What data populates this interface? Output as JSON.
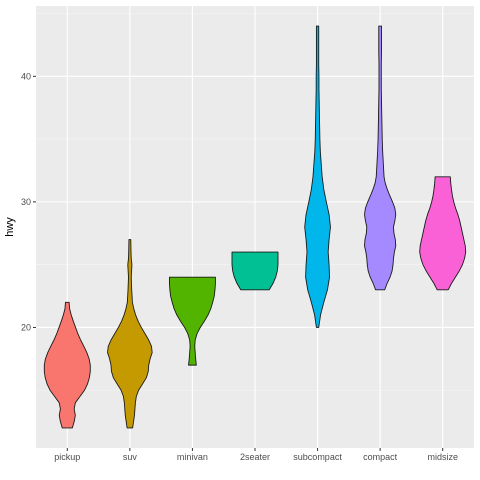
{
  "chart_data": {
    "type": "violin",
    "title": "",
    "xlabel": "",
    "ylabel": "hwy",
    "ylim": [
      10.4,
      45.6
    ],
    "y_ticks": [
      20,
      30,
      40
    ],
    "grid": true,
    "legend": "none",
    "categories": [
      "pickup",
      "suv",
      "minivan",
      "2seater",
      "subcompact",
      "compact",
      "midsize"
    ],
    "colors": [
      "#F8766D",
      "#C49A00",
      "#53B400",
      "#00C094",
      "#00B6EB",
      "#A58AFF",
      "#FB61D7"
    ],
    "violins": [
      {
        "category": "pickup",
        "min": 12,
        "max": 22,
        "profile": [
          [
            12,
            0.22
          ],
          [
            12.5,
            0.3
          ],
          [
            13,
            0.35
          ],
          [
            13.5,
            0.3
          ],
          [
            14,
            0.35
          ],
          [
            14.5,
            0.55
          ],
          [
            15,
            0.75
          ],
          [
            15.5,
            0.88
          ],
          [
            16,
            0.96
          ],
          [
            16.5,
            1.0
          ],
          [
            17,
            1.0
          ],
          [
            17.5,
            0.95
          ],
          [
            18,
            0.85
          ],
          [
            18.5,
            0.72
          ],
          [
            19,
            0.58
          ],
          [
            19.5,
            0.46
          ],
          [
            20,
            0.36
          ],
          [
            20.5,
            0.26
          ],
          [
            21,
            0.17
          ],
          [
            21.5,
            0.1
          ],
          [
            22,
            0.08
          ]
        ]
      },
      {
        "category": "suv",
        "min": 12,
        "max": 27,
        "profile": [
          [
            12,
            0.12
          ],
          [
            12.5,
            0.16
          ],
          [
            13,
            0.2
          ],
          [
            13.5,
            0.22
          ],
          [
            14,
            0.24
          ],
          [
            14.5,
            0.28
          ],
          [
            15,
            0.38
          ],
          [
            15.5,
            0.55
          ],
          [
            16,
            0.72
          ],
          [
            16.5,
            0.8
          ],
          [
            17,
            0.82
          ],
          [
            17.5,
            0.88
          ],
          [
            18,
            0.97
          ],
          [
            18.5,
            0.94
          ],
          [
            19,
            0.82
          ],
          [
            19.5,
            0.66
          ],
          [
            20,
            0.5
          ],
          [
            20.5,
            0.36
          ],
          [
            21,
            0.25
          ],
          [
            21.5,
            0.17
          ],
          [
            22,
            0.11
          ],
          [
            23,
            0.08
          ],
          [
            24,
            0.06
          ],
          [
            25,
            0.09
          ],
          [
            25.5,
            0.06
          ],
          [
            26,
            0.05
          ],
          [
            27,
            0.04
          ]
        ]
      },
      {
        "category": "minivan",
        "min": 17,
        "max": 24,
        "profile": [
          [
            17,
            0.17
          ],
          [
            17.5,
            0.14
          ],
          [
            18,
            0.12
          ],
          [
            18.5,
            0.1
          ],
          [
            19,
            0.12
          ],
          [
            19.5,
            0.2
          ],
          [
            20,
            0.34
          ],
          [
            20.5,
            0.52
          ],
          [
            21,
            0.68
          ],
          [
            21.5,
            0.8
          ],
          [
            22,
            0.88
          ],
          [
            22.5,
            0.95
          ],
          [
            23,
            0.98
          ],
          [
            23.5,
            1.0
          ],
          [
            24,
            1.0
          ]
        ]
      },
      {
        "category": "2seater",
        "min": 23,
        "max": 26,
        "profile": [
          [
            23,
            0.62
          ],
          [
            23.5,
            0.78
          ],
          [
            24,
            0.9
          ],
          [
            24.5,
            0.97
          ],
          [
            25,
            1.0
          ],
          [
            25.5,
            1.0
          ],
          [
            26,
            1.0
          ]
        ]
      },
      {
        "category": "subcompact",
        "min": 20,
        "max": 44,
        "profile": [
          [
            20,
            0.05
          ],
          [
            21,
            0.13
          ],
          [
            22,
            0.27
          ],
          [
            23,
            0.43
          ],
          [
            24,
            0.52
          ],
          [
            25,
            0.5
          ],
          [
            26,
            0.46
          ],
          [
            27,
            0.5
          ],
          [
            28,
            0.56
          ],
          [
            29,
            0.5
          ],
          [
            30,
            0.38
          ],
          [
            31,
            0.27
          ],
          [
            32,
            0.2
          ],
          [
            33,
            0.16
          ],
          [
            34,
            0.12
          ],
          [
            35,
            0.1
          ],
          [
            36,
            0.09
          ],
          [
            37,
            0.08
          ],
          [
            38,
            0.07
          ],
          [
            39,
            0.06
          ],
          [
            40,
            0.06
          ],
          [
            41,
            0.05
          ],
          [
            42,
            0.05
          ],
          [
            43,
            0.05
          ],
          [
            44,
            0.05
          ]
        ]
      },
      {
        "category": "compact",
        "min": 23,
        "max": 44,
        "profile": [
          [
            23,
            0.2
          ],
          [
            23.5,
            0.3
          ],
          [
            24,
            0.43
          ],
          [
            24.5,
            0.52
          ],
          [
            25,
            0.56
          ],
          [
            25.5,
            0.58
          ],
          [
            26,
            0.62
          ],
          [
            26.5,
            0.68
          ],
          [
            27,
            0.66
          ],
          [
            27.5,
            0.6
          ],
          [
            28,
            0.58
          ],
          [
            28.5,
            0.64
          ],
          [
            29,
            0.68
          ],
          [
            29.5,
            0.64
          ],
          [
            30,
            0.54
          ],
          [
            30.5,
            0.42
          ],
          [
            31,
            0.31
          ],
          [
            31.5,
            0.22
          ],
          [
            32,
            0.17
          ],
          [
            33,
            0.14
          ],
          [
            34,
            0.11
          ],
          [
            35,
            0.09
          ],
          [
            36,
            0.08
          ],
          [
            37,
            0.07
          ],
          [
            38,
            0.06
          ],
          [
            39,
            0.05
          ],
          [
            40,
            0.05
          ],
          [
            41,
            0.05
          ],
          [
            42,
            0.06
          ],
          [
            43,
            0.06
          ],
          [
            44,
            0.06
          ]
        ]
      },
      {
        "category": "midsize",
        "min": 23,
        "max": 32,
        "profile": [
          [
            23,
            0.24
          ],
          [
            23.5,
            0.38
          ],
          [
            24,
            0.55
          ],
          [
            24.5,
            0.72
          ],
          [
            25,
            0.86
          ],
          [
            25.5,
            0.95
          ],
          [
            26,
            1.0
          ],
          [
            26.5,
            0.98
          ],
          [
            27,
            0.92
          ],
          [
            27.5,
            0.86
          ],
          [
            28,
            0.8
          ],
          [
            28.5,
            0.74
          ],
          [
            29,
            0.66
          ],
          [
            29.5,
            0.56
          ],
          [
            30,
            0.48
          ],
          [
            30.5,
            0.42
          ],
          [
            31,
            0.38
          ],
          [
            31.5,
            0.35
          ],
          [
            32,
            0.33
          ]
        ]
      }
    ]
  }
}
